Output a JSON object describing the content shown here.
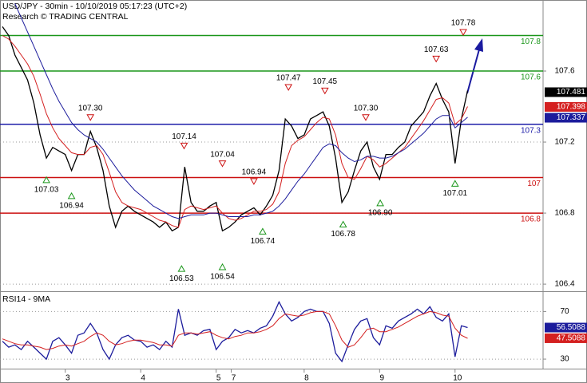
{
  "chart_data": [
    {
      "type": "line",
      "title": "USD/JPY - 30min - 10/10/2019 05:17:23 (UTC+2)",
      "subtitle": "Research © TRADING CENTRAL",
      "xlim": [
        0,
        86
      ],
      "ylim": [
        106.36,
        108.0
      ],
      "yticks": [
        106.4,
        106.8,
        107.2,
        107.6
      ],
      "grid": true,
      "series": [
        {
          "color": "#000000",
          "values": [
            107.85,
            107.8,
            107.69,
            107.62,
            107.55,
            107.42,
            107.24,
            107.11,
            107.17,
            107.15,
            107.13,
            107.04,
            107.13,
            107.13,
            107.26,
            107.17,
            107.04,
            106.84,
            106.72,
            106.81,
            106.84,
            106.81,
            106.79,
            106.77,
            106.75,
            106.72,
            106.75,
            106.7,
            106.72,
            107.06,
            106.86,
            106.81,
            106.81,
            106.84,
            106.86,
            106.7,
            106.72,
            106.75,
            106.79,
            106.81,
            106.83,
            106.79,
            106.84,
            106.9,
            107.04,
            107.33,
            107.29,
            107.22,
            107.24,
            107.33,
            107.35,
            107.37,
            107.29,
            107.11,
            106.86,
            106.92,
            107.04,
            107.15,
            107.2,
            107.06,
            106.99,
            107.13,
            107.13,
            107.17,
            107.2,
            107.29,
            107.33,
            107.37,
            107.46,
            107.53,
            107.44,
            107.37,
            107.08,
            107.33,
            107.49
          ]
        },
        {
          "color": "#d42020",
          "values": [
            107.8,
            107.78,
            107.74,
            107.69,
            107.64,
            107.57,
            107.47,
            107.36,
            107.28,
            107.22,
            107.18,
            107.14,
            107.13,
            107.13,
            107.17,
            107.18,
            107.13,
            107.03,
            106.92,
            106.86,
            106.84,
            106.83,
            106.82,
            106.8,
            106.78,
            106.76,
            106.75,
            106.73,
            106.72,
            106.82,
            106.84,
            106.83,
            106.82,
            106.83,
            106.84,
            106.8,
            106.77,
            106.76,
            106.77,
            106.79,
            106.81,
            106.81,
            106.82,
            106.85,
            106.92,
            107.08,
            107.18,
            107.21,
            107.23,
            107.27,
            107.31,
            107.34,
            107.33,
            107.24,
            107.08,
            107.0,
            106.99,
            107.05,
            107.12,
            107.1,
            107.06,
            107.08,
            107.11,
            107.14,
            107.17,
            107.22,
            107.27,
            107.32,
            107.38,
            107.44,
            107.45,
            107.42,
            107.3,
            107.33,
            107.4
          ]
        },
        {
          "color": "#1c1c9c",
          "values": [
            null,
            null,
            107.98,
            107.9,
            107.82,
            107.74,
            107.66,
            107.58,
            107.5,
            107.43,
            107.37,
            107.31,
            107.27,
            107.24,
            107.22,
            107.2,
            107.16,
            107.11,
            107.06,
            107.01,
            106.97,
            106.93,
            106.9,
            106.87,
            106.84,
            106.82,
            106.8,
            106.78,
            106.77,
            106.78,
            106.79,
            106.79,
            106.79,
            106.8,
            106.8,
            106.79,
            106.78,
            106.78,
            106.78,
            106.78,
            106.79,
            106.79,
            106.8,
            106.81,
            106.84,
            106.88,
            106.93,
            106.98,
            107.02,
            107.07,
            107.12,
            107.17,
            107.19,
            107.18,
            107.14,
            107.11,
            107.09,
            107.1,
            107.12,
            107.12,
            107.11,
            107.11,
            107.12,
            107.14,
            107.16,
            107.19,
            107.22,
            107.25,
            107.29,
            107.33,
            107.35,
            107.35,
            107.28,
            107.31,
            107.34
          ]
        }
      ],
      "levels": [
        {
          "value": 107.8,
          "color": "#1a961a"
        },
        {
          "value": 107.6,
          "color": "#1a961a"
        },
        {
          "value": 107.3,
          "color": "#1c1ca8"
        },
        {
          "value": 107,
          "color": "#cc1010"
        },
        {
          "value": 106.8,
          "color": "#cc1010"
        }
      ],
      "annotations": [
        {
          "x": 14,
          "kind": "high",
          "value": 107.3,
          "label": "107.30"
        },
        {
          "x": 7,
          "kind": "low",
          "value": 107.03,
          "label": "107.03"
        },
        {
          "x": 11,
          "kind": "low",
          "value": 106.94,
          "label": "106.94"
        },
        {
          "x": 28.5,
          "kind": "low",
          "value": 106.53,
          "label": "106.53"
        },
        {
          "x": 28.9,
          "kind": "high",
          "value": 107.14,
          "label": "107.14"
        },
        {
          "x": 35,
          "kind": "high",
          "value": 107.04,
          "label": "107.04"
        },
        {
          "x": 35,
          "kind": "low",
          "value": 106.54,
          "label": "106.54"
        },
        {
          "x": 40,
          "kind": "high",
          "value": 106.94,
          "label": "106.94"
        },
        {
          "x": 41.4,
          "kind": "low",
          "value": 106.74,
          "label": "106.74"
        },
        {
          "x": 45.5,
          "kind": "high",
          "value": 107.47,
          "label": "107.47"
        },
        {
          "x": 51.3,
          "kind": "high",
          "value": 107.45,
          "label": "107.45"
        },
        {
          "x": 54.2,
          "kind": "low",
          "value": 106.78,
          "label": "106.78"
        },
        {
          "x": 57.8,
          "kind": "high",
          "value": 107.3,
          "label": "107.30"
        },
        {
          "x": 60.1,
          "kind": "low",
          "value": 106.9,
          "label": "106.90"
        },
        {
          "x": 69,
          "kind": "high",
          "value": 107.63,
          "label": "107.63"
        },
        {
          "x": 73.3,
          "kind": "high",
          "value": 107.78,
          "label": "107.78"
        },
        {
          "x": 72,
          "kind": "low",
          "value": 107.01,
          "label": "107.01"
        }
      ],
      "price_tags": [
        {
          "value": 107.481,
          "color": "#000000"
        },
        {
          "value": 107.398,
          "color": "#d42020"
        },
        {
          "value": 107.337,
          "color": "#1c1c9c"
        }
      ]
    },
    {
      "type": "line",
      "title": "RSI14 - 9MA",
      "xlim": [
        0,
        86
      ],
      "xticks": [
        {
          "value": 10,
          "label": "3"
        },
        {
          "value": 22,
          "label": "4"
        },
        {
          "value": 34,
          "label": "5"
        },
        {
          "value": 36.4,
          "label": "7"
        },
        {
          "value": 48,
          "label": "8"
        },
        {
          "value": 60,
          "label": "9"
        },
        {
          "value": 72,
          "label": "10"
        }
      ],
      "ylim": [
        22,
        85
      ],
      "yticks": [
        30,
        70
      ],
      "grid": true,
      "series": [
        {
          "color": "#1c1c9c",
          "values": [
            45,
            40,
            42,
            38,
            45,
            40,
            35,
            30,
            45,
            48,
            42,
            35,
            50,
            52,
            60,
            52,
            38,
            30,
            42,
            48,
            50,
            46,
            45,
            40,
            42,
            38,
            45,
            40,
            72,
            50,
            52,
            50,
            54,
            55,
            38,
            45,
            48,
            55,
            52,
            54,
            52,
            56,
            58,
            66,
            78,
            68,
            62,
            65,
            70,
            72,
            70,
            70,
            60,
            35,
            28,
            42,
            55,
            62,
            64,
            48,
            42,
            58,
            56,
            62,
            65,
            68,
            72,
            68,
            74,
            65,
            62,
            68,
            32,
            58,
            56.5
          ]
        },
        {
          "color": "#d42020",
          "values": [
            47,
            45,
            43,
            42,
            42,
            41,
            40,
            38,
            39,
            41,
            42,
            41,
            43,
            45,
            49,
            52,
            50,
            45,
            42,
            43,
            45,
            46,
            46,
            45,
            44,
            42,
            42,
            41,
            50,
            52,
            52,
            51,
            52,
            53,
            50,
            48,
            47,
            49,
            50,
            52,
            52,
            53,
            55,
            58,
            64,
            68,
            67,
            66,
            67,
            69,
            70,
            70,
            68,
            58,
            46,
            40,
            42,
            48,
            55,
            56,
            53,
            53,
            55,
            57,
            60,
            63,
            66,
            68,
            70,
            69,
            67,
            66,
            56,
            50,
            47.5
          ]
        }
      ],
      "price_tags": [
        {
          "value": 56.5088,
          "color": "#1c1c9c"
        },
        {
          "value": 47.5088,
          "color": "#d42020"
        }
      ]
    }
  ]
}
